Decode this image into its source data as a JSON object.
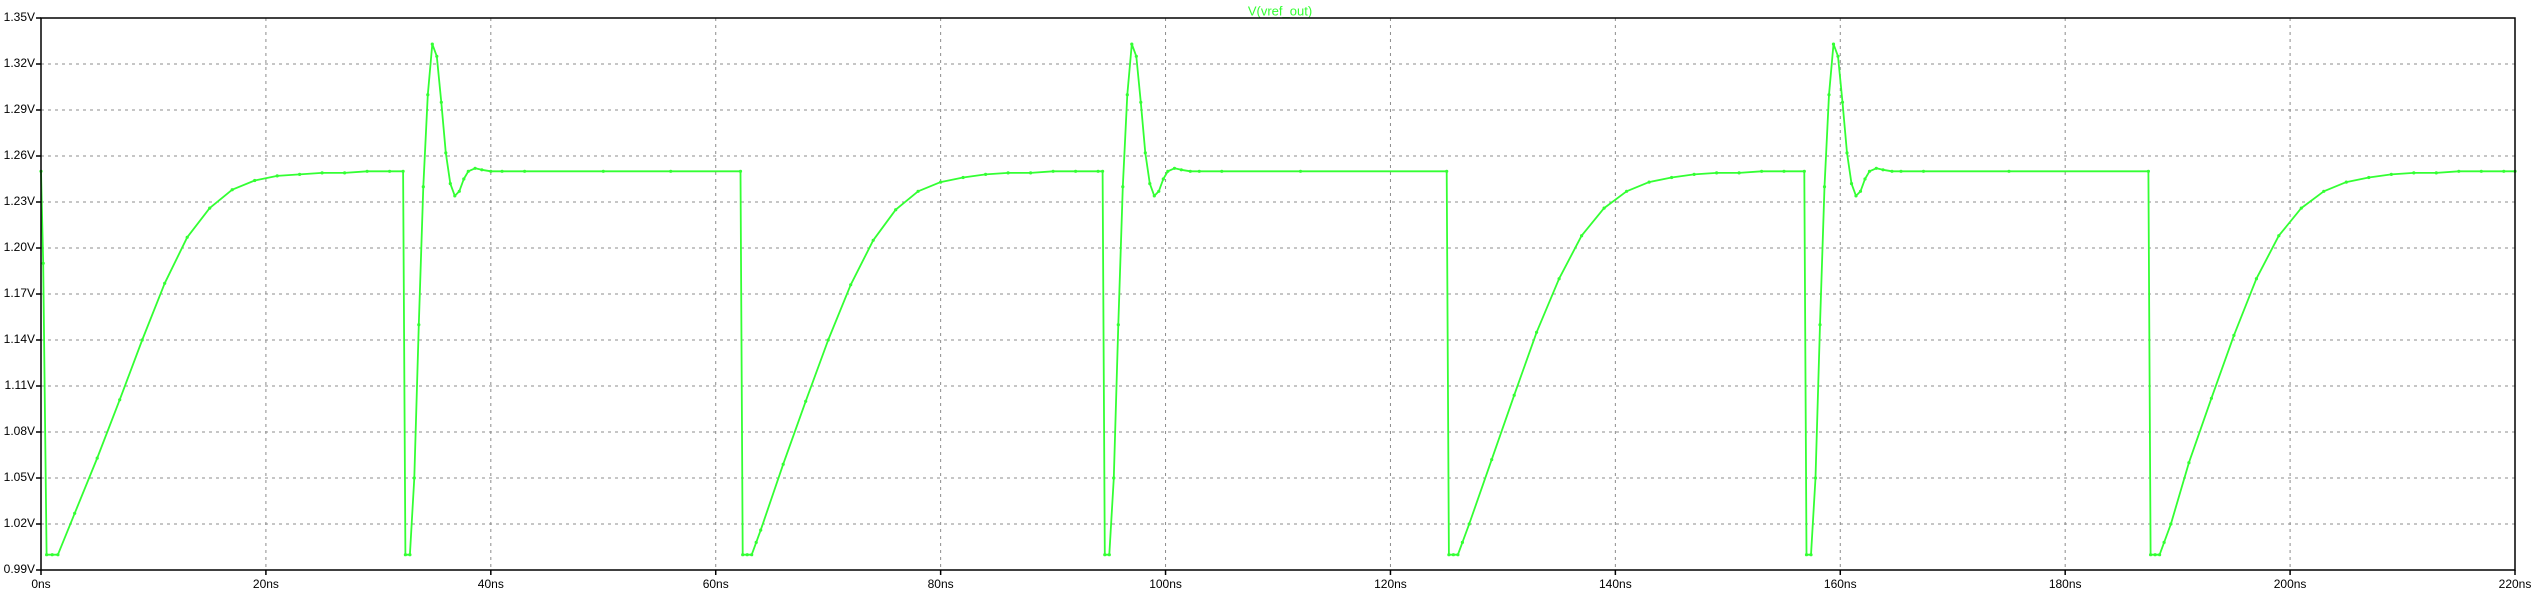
{
  "chart_data": {
    "type": "line",
    "title": "V(vref_out)",
    "xlabel": "",
    "ylabel": "",
    "xlim": [
      0,
      220
    ],
    "ylim": [
      0.99,
      1.35
    ],
    "x_unit": "ns",
    "y_unit": "V",
    "grid": true,
    "x_ticks": [
      "0ns",
      "20ns",
      "40ns",
      "60ns",
      "80ns",
      "100ns",
      "120ns",
      "140ns",
      "160ns",
      "180ns",
      "200ns",
      "220ns"
    ],
    "y_ticks": [
      "0.99V",
      "1.02V",
      "1.05V",
      "1.08V",
      "1.11V",
      "1.14V",
      "1.17V",
      "1.20V",
      "1.23V",
      "1.26V",
      "1.29V",
      "1.32V",
      "1.35V"
    ],
    "x_tick_values": [
      0,
      20,
      40,
      60,
      80,
      100,
      120,
      140,
      160,
      180,
      200,
      220
    ],
    "y_tick_values": [
      0.99,
      1.02,
      1.05,
      1.08,
      1.11,
      1.14,
      1.17,
      1.2,
      1.23,
      1.26,
      1.29,
      1.32,
      1.35
    ],
    "series": [
      {
        "name": "V(vref_out)",
        "color": "#33ff33",
        "x": [
          0,
          0.2,
          0.5,
          1.0,
          1.5,
          3,
          5,
          7,
          9,
          11,
          13,
          15,
          17,
          19,
          21,
          23,
          25,
          27,
          29,
          31,
          32.2,
          32.4,
          32.8,
          33.2,
          33.6,
          34.0,
          34.4,
          34.8,
          35.2,
          35.6,
          36.0,
          36.4,
          36.8,
          37.2,
          37.6,
          38.0,
          38.6,
          39.2,
          40.0,
          41,
          43,
          50,
          56,
          62.2,
          62.4,
          62.8,
          63.2,
          63.6,
          64,
          66,
          68,
          70,
          72,
          74,
          76,
          78,
          80,
          82,
          84,
          86,
          88,
          90,
          92,
          94,
          94.4,
          94.6,
          95.0,
          95.4,
          95.8,
          96.2,
          96.6,
          97.0,
          97.4,
          97.8,
          98.2,
          98.6,
          99.0,
          99.4,
          99.8,
          100.2,
          100.8,
          101.4,
          102.2,
          103,
          105,
          112,
          125.0,
          125.2,
          125.6,
          126.0,
          126.4,
          127,
          129,
          131,
          133,
          135,
          137,
          139,
          141,
          143,
          145,
          147,
          149,
          151,
          153,
          155,
          156.8,
          157.0,
          157.4,
          157.8,
          158.2,
          158.6,
          159.0,
          159.4,
          159.8,
          160.2,
          160.6,
          161.0,
          161.4,
          161.8,
          162.2,
          162.6,
          163.2,
          163.8,
          164.6,
          165.4,
          167.4,
          175,
          187.4,
          187.6,
          188.0,
          188.4,
          188.8,
          189.4,
          191,
          193,
          195,
          197,
          199,
          201,
          203,
          205,
          207,
          209,
          211,
          213,
          215,
          217,
          219,
          220
        ],
        "y": [
          1.25,
          1.19,
          1.0,
          1.0,
          1.0,
          1.027,
          1.063,
          1.101,
          1.14,
          1.177,
          1.207,
          1.226,
          1.238,
          1.244,
          1.247,
          1.248,
          1.249,
          1.249,
          1.25,
          1.25,
          1.25,
          1.0,
          1.0,
          1.05,
          1.15,
          1.24,
          1.3,
          1.333,
          1.325,
          1.295,
          1.262,
          1.242,
          1.234,
          1.237,
          1.245,
          1.25,
          1.252,
          1.251,
          1.25,
          1.25,
          1.25,
          1.25,
          1.25,
          1.25,
          1.0,
          1.0,
          1.0,
          1.008,
          1.016,
          1.059,
          1.1,
          1.14,
          1.176,
          1.205,
          1.225,
          1.237,
          1.243,
          1.246,
          1.248,
          1.249,
          1.249,
          1.25,
          1.25,
          1.25,
          1.25,
          1.0,
          1.0,
          1.05,
          1.15,
          1.24,
          1.3,
          1.333,
          1.325,
          1.295,
          1.262,
          1.242,
          1.234,
          1.237,
          1.245,
          1.25,
          1.252,
          1.251,
          1.25,
          1.25,
          1.25,
          1.25,
          1.25,
          1.0,
          1.0,
          1.0,
          1.008,
          1.02,
          1.062,
          1.104,
          1.145,
          1.18,
          1.208,
          1.226,
          1.237,
          1.243,
          1.246,
          1.248,
          1.249,
          1.249,
          1.25,
          1.25,
          1.25,
          1.0,
          1.0,
          1.05,
          1.15,
          1.24,
          1.3,
          1.333,
          1.325,
          1.295,
          1.262,
          1.242,
          1.234,
          1.237,
          1.245,
          1.25,
          1.252,
          1.251,
          1.25,
          1.25,
          1.25,
          1.25,
          1.25,
          1.0,
          1.0,
          1.0,
          1.008,
          1.02,
          1.06,
          1.102,
          1.143,
          1.18,
          1.208,
          1.226,
          1.237,
          1.243,
          1.246,
          1.248,
          1.249,
          1.249,
          1.25,
          1.25,
          1.25,
          1.25
        ]
      }
    ]
  }
}
